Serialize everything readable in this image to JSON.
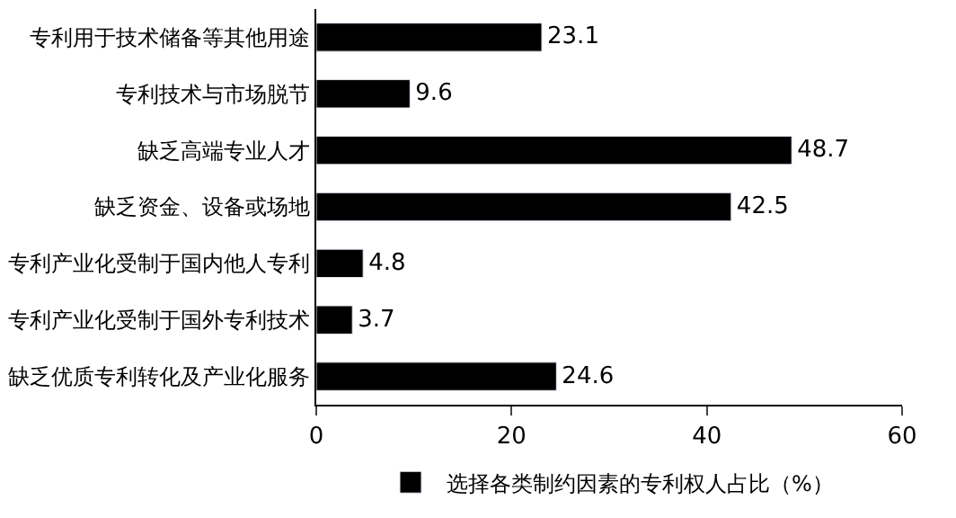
{
  "chart_data": {
    "type": "bar",
    "orientation": "horizontal",
    "categories": [
      "专利用于技术储备等其他用途",
      "专利技术与市场脱节",
      "缺乏高端专业人才",
      "缺乏资金、设备或场地",
      "专利产业化受制于国内他人专利",
      "专利产业化受制于国外专利技术",
      "缺乏优质专利转化及产业化服务"
    ],
    "series": [
      {
        "name": "选择各类制约因素的专利权人占比（%）",
        "color": "#000000",
        "values": [
          23.1,
          9.6,
          48.7,
          42.5,
          4.8,
          3.7,
          24.6
        ]
      }
    ],
    "xlim": [
      0,
      60
    ],
    "xticks": [
      0,
      20,
      40,
      60
    ],
    "data_labels": true,
    "legend": "bottom"
  }
}
